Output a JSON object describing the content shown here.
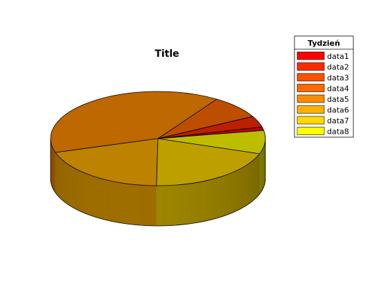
{
  "chart_data": {
    "type": "pie",
    "style": "3d",
    "title": "Title",
    "legend": {
      "title": "Tydzień",
      "placement": "top-right"
    },
    "slices": [
      {
        "name": "data1",
        "value": 1.2,
        "color": "#ff0000"
      },
      {
        "name": "data2",
        "value": 3.8,
        "color": "#ff2a00"
      },
      {
        "name": "data3",
        "value": 0.0,
        "color": "#ff5000"
      },
      {
        "name": "data4",
        "value": 8.0,
        "color": "#ff6a00"
      },
      {
        "name": "data5",
        "value": 39.0,
        "color": "#ff8c00"
      },
      {
        "name": "data6",
        "value": 20.0,
        "color": "#ffb000"
      },
      {
        "name": "data7",
        "value": 20.0,
        "color": "#ffd800"
      },
      {
        "name": "data8",
        "value": 8.0,
        "color": "#ffff00"
      }
    ]
  }
}
